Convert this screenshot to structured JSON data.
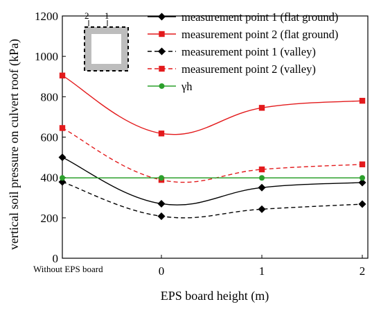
{
  "chart_data": {
    "type": "line",
    "title": "",
    "xlabel": "EPS board height (m)",
    "ylabel": "vertical soil pressure on culvert roof (kPa)",
    "categories": [
      "Without EPS board",
      "0",
      "1",
      "2"
    ],
    "ylim": [
      0,
      1200
    ],
    "yticks": [
      "0",
      "200",
      "400",
      "600",
      "800",
      "1000",
      "1200"
    ],
    "grid": false,
    "legend_position": "top-right",
    "inset_labels": [
      "2",
      "1"
    ],
    "series": [
      {
        "name": "measurement point 1 (flat ground)",
        "values": [
          500,
          270,
          350,
          375
        ],
        "color": "#000000",
        "dashed": false,
        "marker": "diamond"
      },
      {
        "name": "measurement point 2 (flat ground)",
        "values": [
          905,
          618,
          745,
          780
        ],
        "color": "#e31a1c",
        "dashed": false,
        "marker": "square"
      },
      {
        "name": "measurement point 1 (valley)",
        "values": [
          378,
          208,
          243,
          268
        ],
        "color": "#000000",
        "dashed": true,
        "marker": "diamond"
      },
      {
        "name": "measurement point 2 (valley)",
        "values": [
          645,
          388,
          440,
          465
        ],
        "color": "#e31a1c",
        "dashed": true,
        "marker": "square"
      },
      {
        "name": "γh",
        "values": [
          398,
          398,
          398,
          398
        ],
        "color": "#2ca02c",
        "dashed": false,
        "marker": "circle"
      }
    ]
  }
}
